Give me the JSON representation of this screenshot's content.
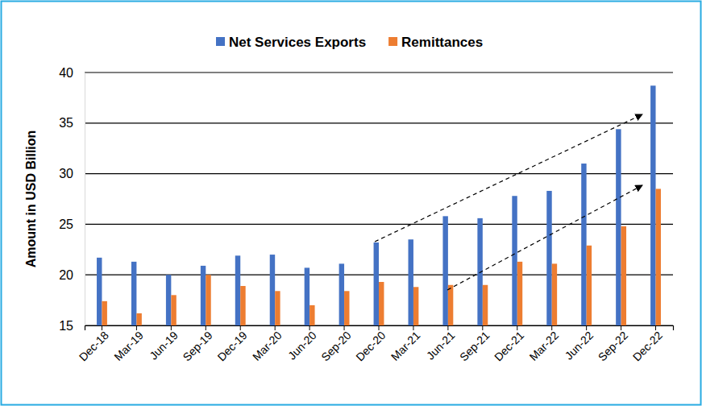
{
  "chart_data": {
    "type": "bar",
    "y_label": "Amount in USD Billion",
    "categories": [
      "Dec-18",
      "Mar-19",
      "Jun-19",
      "Sep-19",
      "Dec-19",
      "Mar-20",
      "Jun-20",
      "Sep-20",
      "Dec-20",
      "Mar-21",
      "Jun-21",
      "Sep-21",
      "Dec-21",
      "Mar-22",
      "Jun-22",
      "Sep-22",
      "Dec-22"
    ],
    "series": [
      {
        "name": "Net Services Exports",
        "color": "#4472c4",
        "values": [
          21.7,
          21.3,
          20.0,
          20.9,
          21.9,
          22.0,
          20.7,
          21.1,
          23.2,
          23.5,
          25.8,
          25.6,
          27.8,
          28.3,
          31.0,
          34.4,
          38.7
        ]
      },
      {
        "name": "Remittances",
        "color": "#ed7d31",
        "values": [
          17.4,
          16.2,
          18.0,
          20.0,
          18.9,
          18.4,
          17.0,
          18.4,
          19.3,
          18.8,
          19.0,
          19.0,
          21.3,
          21.1,
          22.9,
          24.8,
          28.5
        ]
      }
    ],
    "ylim": [
      15,
      40
    ],
    "yticks": [
      15,
      20,
      25,
      30,
      35,
      40
    ],
    "grid": true,
    "legend": "top"
  }
}
